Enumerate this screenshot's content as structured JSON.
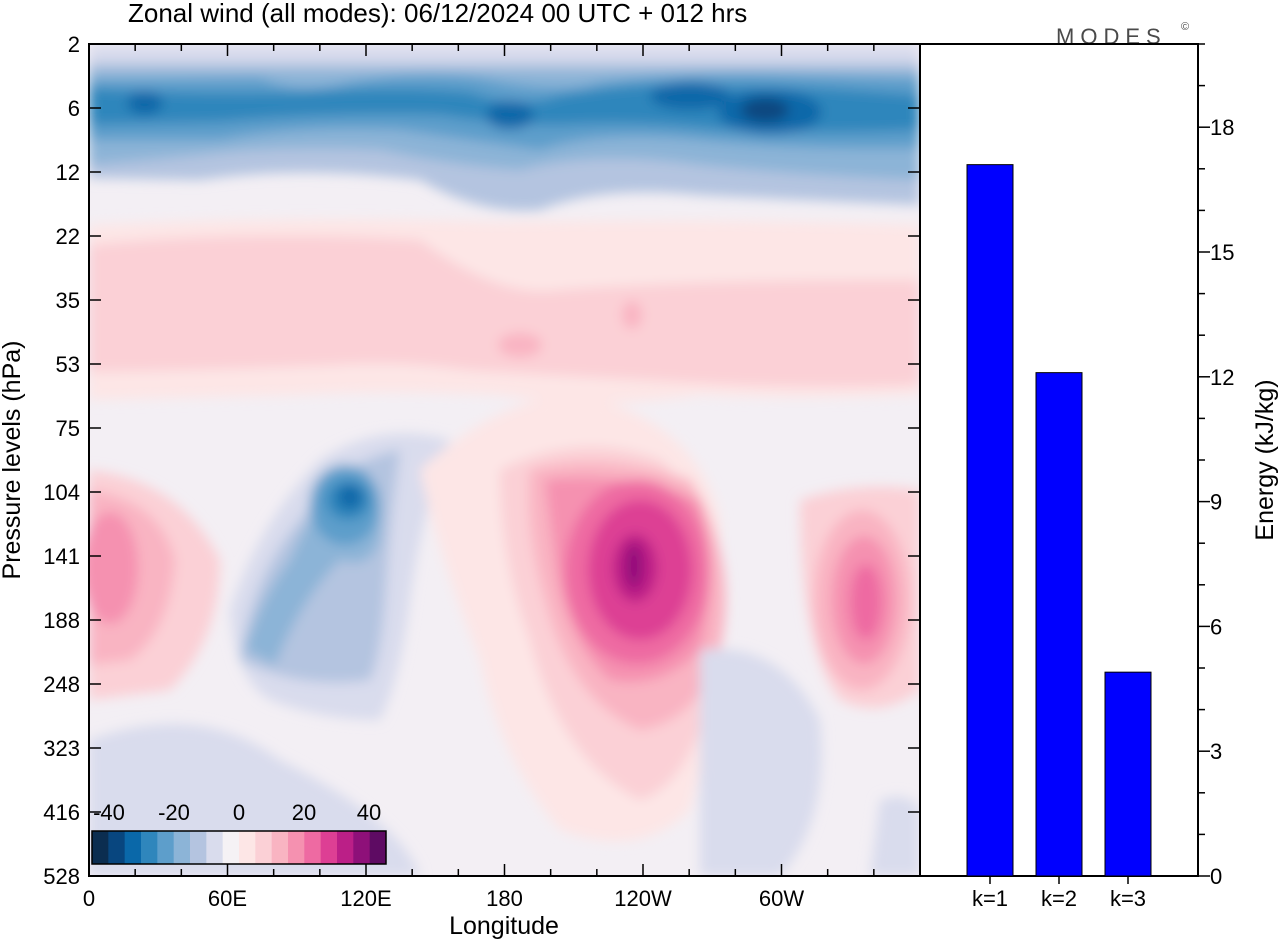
{
  "title": "Zonal wind (all modes):  06/12/2024  00 UTC  + 012 hrs",
  "brand": "MODES",
  "brand_mark": "©",
  "colors": {
    "energy_bar": "#0000ff",
    "negative_scale": [
      "#0b2d50",
      "#08467f",
      "#0a68a9",
      "#2f86bc",
      "#5d9ecb",
      "#8cb4d7",
      "#b4c4e0",
      "#d9dced"
    ],
    "zero": "#f5f2f5",
    "positive_scale": [
      "#fde6e6",
      "#fbd0d6",
      "#f9b4c2",
      "#f591b0",
      "#ee6aa2",
      "#dd3f94",
      "#bb1f87",
      "#8e1079",
      "#5e0b63"
    ]
  },
  "chart_data": [
    {
      "type": "heatmap",
      "title": "Zonal wind (all modes):  06/12/2024  00 UTC  + 012 hrs",
      "xlabel": "Longitude",
      "ylabel": "Pressure levels (hPa)",
      "x_ticks": [
        "0",
        "60E",
        "120E",
        "180",
        "120W",
        "60W"
      ],
      "y_ticks": [
        "2",
        "6",
        "12",
        "22",
        "35",
        "53",
        "75",
        "104",
        "141",
        "188",
        "248",
        "323",
        "416",
        "528"
      ],
      "colorbar": {
        "labels": [
          "-40",
          "-20",
          "0",
          "20",
          "40"
        ],
        "range": [
          -40,
          40
        ]
      },
      "features": [
        {
          "lon": 20,
          "hPa": 6,
          "value": -36
        },
        {
          "lon": 180,
          "hPa": 8,
          "value": -30
        },
        {
          "lon": 235,
          "hPa": 6,
          "value": -34
        },
        {
          "lon": 300,
          "hPa": 7,
          "value": -40
        },
        {
          "lon": 110,
          "hPa": 112,
          "value": -34
        },
        {
          "lon": 70,
          "hPa": 200,
          "value": -20
        },
        {
          "lon": 10,
          "hPa": 150,
          "value": 18
        },
        {
          "lon": 240,
          "hPa": 150,
          "value": 40
        },
        {
          "lon": 330,
          "hPa": 170,
          "value": 24
        },
        {
          "lon": 190,
          "hPa": 45,
          "value": 10
        }
      ]
    },
    {
      "type": "bar",
      "categories": [
        "k=1",
        "k=2",
        "k=3"
      ],
      "values": [
        17.1,
        12.1,
        4.9
      ],
      "ylabel": "Energy (kJ/kg)",
      "y_ticks": [
        "0",
        "3",
        "6",
        "9",
        "12",
        "15",
        "18"
      ],
      "ylim": [
        0,
        20
      ]
    }
  ]
}
